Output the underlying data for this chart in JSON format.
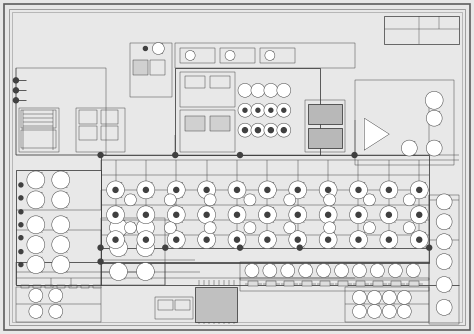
{
  "bg": "#e8e8e8",
  "paper": "#f5f5f5",
  "lc": "#404040",
  "lc2": "#555555",
  "border_outer": "#707070",
  "border_inner": "#909090",
  "figsize": [
    4.74,
    3.34
  ],
  "dpi": 100,
  "line_thin": 0.35,
  "line_med": 0.6,
  "line_thick": 0.9,
  "ts": 0.018,
  "ts_small": 0.012
}
